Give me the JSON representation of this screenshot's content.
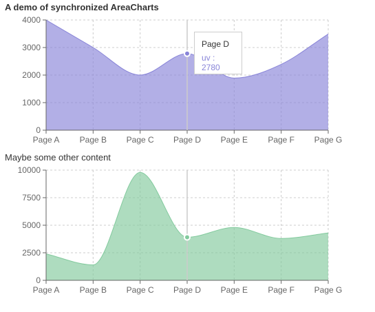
{
  "chart_data": [
    {
      "type": "area",
      "title": "A demo of synchronized AreaCharts",
      "categories": [
        "Page A",
        "Page B",
        "Page C",
        "Page D",
        "Page E",
        "Page F",
        "Page G"
      ],
      "series": [
        {
          "values": [
            4000,
            3000,
            2000,
            2780,
            1890,
            2390,
            3490
          ]
        }
      ],
      "ylim": [
        0,
        4000
      ],
      "yticks": [
        "0",
        "1000",
        "2000",
        "3000",
        "4000"
      ],
      "grid": true,
      "fill": "#8884d8",
      "active": {
        "category": "Page D",
        "label": "Page D",
        "value_text": "uv : 2780"
      }
    },
    {
      "type": "area",
      "title": "Maybe some other content",
      "categories": [
        "Page A",
        "Page B",
        "Page C",
        "Page D",
        "Page E",
        "Page F",
        "Page G"
      ],
      "series": [
        {
          "values": [
            2400,
            1398,
            9800,
            3908,
            4800,
            3800,
            4300
          ]
        }
      ],
      "ylim": [
        0,
        10000
      ],
      "yticks": [
        "0",
        "2500",
        "5000",
        "7500",
        "10000"
      ],
      "grid": true,
      "fill": "#82ca9d"
    }
  ]
}
